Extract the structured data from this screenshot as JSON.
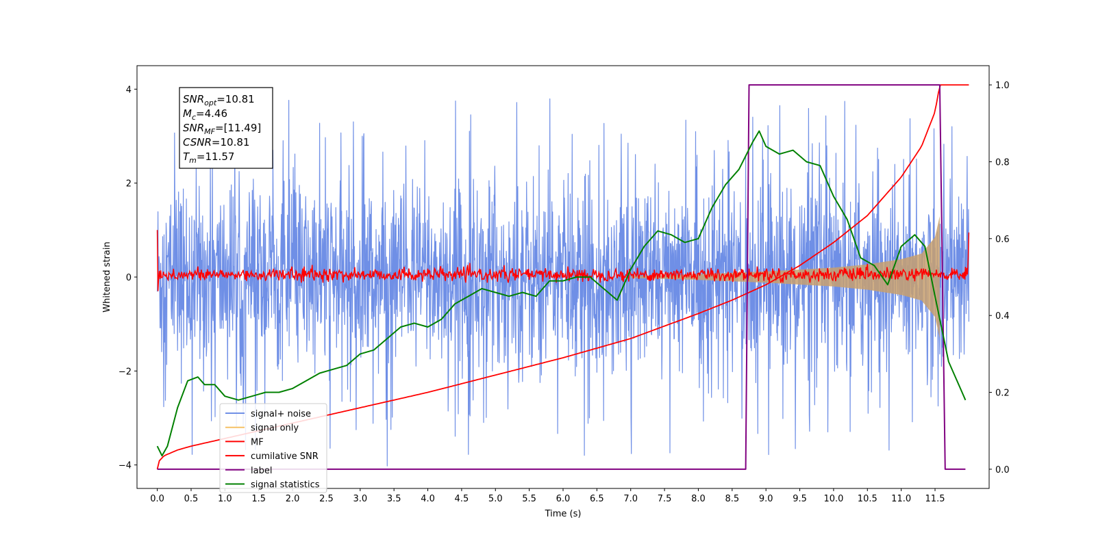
{
  "chart_data": {
    "type": "line",
    "xlabel": "Time (s)",
    "ylabel": "Whitened strain",
    "xlim": [
      -0.3,
      12.3
    ],
    "ylim": [
      -4.5,
      4.5
    ],
    "y2lim": [
      -0.05,
      1.05
    ],
    "x_ticks": [
      "0.0",
      "0.5",
      "1.0",
      "1.5",
      "2.0",
      "2.5",
      "3.0",
      "3.5",
      "4.0",
      "4.5",
      "5.0",
      "5.5",
      "6.0",
      "6.5",
      "7.0",
      "7.5",
      "8.0",
      "8.5",
      "9.0",
      "9.5",
      "10.0",
      "10.5",
      "11.0",
      "11.5"
    ],
    "y_ticks": [
      "4",
      "2",
      "0",
      "−2",
      "−4"
    ],
    "y2_ticks": [
      "1.0",
      "0.8",
      "0.6",
      "0.4",
      "0.2",
      "0.0"
    ],
    "grid": false,
    "legend_position": "lower-left",
    "info_box": {
      "lines": [
        {
          "sym": "SNR",
          "sub": "opt",
          "val": "=10.81"
        },
        {
          "sym": "M",
          "sub": "c",
          "val": "=4.46"
        },
        {
          "sym": "SNR",
          "sub": "MF",
          "val": "=[11.49]"
        },
        {
          "sym": "CSNR",
          "sub": "",
          "val": "=10.81"
        },
        {
          "sym": "T",
          "sub": "m",
          "val": "=11.57"
        }
      ]
    },
    "legend": [
      {
        "label": "signal+ noise",
        "color": "#6f8fe6"
      },
      {
        "label": "signal only",
        "color": "#f5c166"
      },
      {
        "label": "MF",
        "color": "#ff0000"
      },
      {
        "label": "cumilative SNR",
        "color": "#ff0000"
      },
      {
        "label": "label",
        "color": "#800080"
      },
      {
        "label": "signal statistics",
        "color": "#008000"
      }
    ],
    "series": [
      {
        "name": "signal+ noise",
        "axis": "left",
        "color": "#6f8fe6",
        "description_range": {
          "x_start": 0.0,
          "x_end": 12.0,
          "y_min": -4.05,
          "y_max": 4.1,
          "typical_band": [
            -2.5,
            2.5
          ]
        }
      },
      {
        "name": "signal only",
        "axis": "left",
        "color": "#f5c166",
        "x": [
          7.0,
          8.0,
          9.0,
          10.0,
          10.5,
          11.0,
          11.3,
          11.5,
          11.57
        ],
        "envelope": [
          0.02,
          0.06,
          0.12,
          0.2,
          0.27,
          0.38,
          0.5,
          0.85,
          1.3
        ]
      },
      {
        "name": "MF",
        "axis": "left",
        "color": "#ff0000",
        "x_start": 0.0,
        "x_end": 12.0,
        "edge_peaks": [
          1.0,
          0.95
        ],
        "band": [
          -0.12,
          0.3
        ]
      },
      {
        "name": "cumilative SNR",
        "axis": "right",
        "color": "#ff0000",
        "x": [
          0.0,
          0.02,
          0.1,
          0.3,
          0.5,
          1.0,
          2.0,
          3.0,
          4.0,
          5.0,
          6.0,
          7.0,
          8.0,
          8.5,
          9.0,
          9.5,
          10.0,
          10.5,
          11.0,
          11.3,
          11.5,
          11.57,
          12.0
        ],
        "y": [
          0.0,
          0.02,
          0.035,
          0.05,
          0.06,
          0.08,
          0.12,
          0.16,
          0.2,
          0.245,
          0.29,
          0.34,
          0.405,
          0.44,
          0.48,
          0.53,
          0.59,
          0.66,
          0.76,
          0.84,
          0.93,
          1.0,
          1.0
        ]
      },
      {
        "name": "label",
        "axis": "right",
        "color": "#800080",
        "x": [
          0.0,
          8.7,
          8.75,
          11.57,
          11.65,
          11.95
        ],
        "y": [
          0.0,
          0.0,
          1.0,
          1.0,
          0.0,
          0.0
        ]
      },
      {
        "name": "signal statistics",
        "axis": "right",
        "color": "#008000",
        "x": [
          0.0,
          0.07,
          0.15,
          0.3,
          0.45,
          0.6,
          0.7,
          0.85,
          1.0,
          1.2,
          1.4,
          1.6,
          1.8,
          2.0,
          2.2,
          2.4,
          2.6,
          2.8,
          3.0,
          3.2,
          3.4,
          3.6,
          3.8,
          4.0,
          4.2,
          4.4,
          4.6,
          4.8,
          5.0,
          5.2,
          5.4,
          5.6,
          5.8,
          6.0,
          6.2,
          6.4,
          6.6,
          6.8,
          7.0,
          7.2,
          7.4,
          7.6,
          7.8,
          8.0,
          8.2,
          8.4,
          8.6,
          8.8,
          8.9,
          9.0,
          9.2,
          9.4,
          9.6,
          9.8,
          10.0,
          10.2,
          10.4,
          10.6,
          10.8,
          11.0,
          11.2,
          11.35,
          11.5,
          11.7,
          11.9,
          11.95
        ],
        "y": [
          0.06,
          0.035,
          0.06,
          0.16,
          0.23,
          0.24,
          0.22,
          0.22,
          0.19,
          0.18,
          0.19,
          0.2,
          0.2,
          0.21,
          0.23,
          0.25,
          0.26,
          0.27,
          0.3,
          0.31,
          0.34,
          0.37,
          0.38,
          0.37,
          0.39,
          0.43,
          0.45,
          0.47,
          0.46,
          0.45,
          0.46,
          0.45,
          0.49,
          0.49,
          0.5,
          0.5,
          0.47,
          0.44,
          0.52,
          0.58,
          0.62,
          0.61,
          0.59,
          0.6,
          0.68,
          0.74,
          0.78,
          0.85,
          0.88,
          0.84,
          0.82,
          0.83,
          0.8,
          0.79,
          0.71,
          0.65,
          0.55,
          0.53,
          0.48,
          0.58,
          0.61,
          0.58,
          0.45,
          0.28,
          0.2,
          0.18
        ]
      }
    ]
  }
}
